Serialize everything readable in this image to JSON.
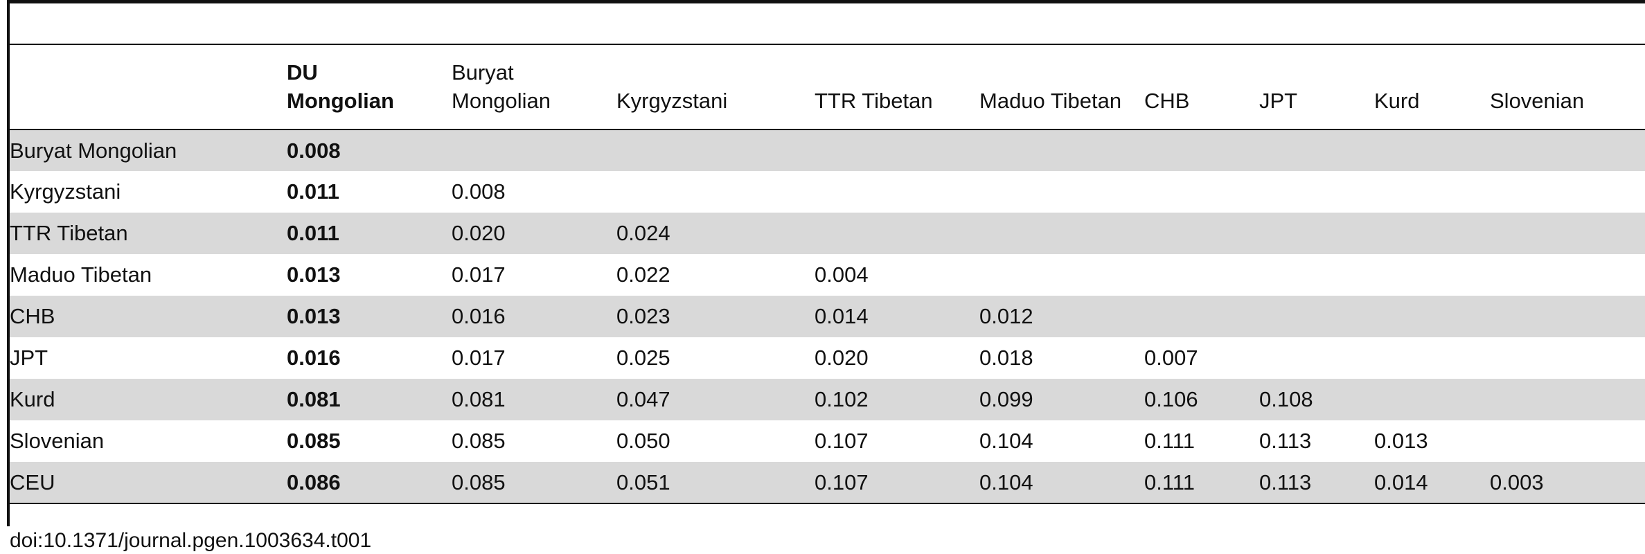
{
  "table": {
    "row_header_label": "",
    "columns": [
      "DU Mongolian",
      "Buryat Mongolian",
      "Kyrgyzstani",
      "TTR Tibetan",
      "Maduo Tibetan",
      "CHB",
      "JPT",
      "Kurd",
      "Slovenian"
    ],
    "rows": [
      {
        "label": "Buryat Mongolian",
        "values": [
          "0.008",
          "",
          "",
          "",
          "",
          "",
          "",
          "",
          ""
        ]
      },
      {
        "label": "Kyrgyzstani",
        "values": [
          "0.011",
          "0.008",
          "",
          "",
          "",
          "",
          "",
          "",
          ""
        ]
      },
      {
        "label": "TTR Tibetan",
        "values": [
          "0.011",
          "0.020",
          "0.024",
          "",
          "",
          "",
          "",
          "",
          ""
        ]
      },
      {
        "label": "Maduo Tibetan",
        "values": [
          "0.013",
          "0.017",
          "0.022",
          "0.004",
          "",
          "",
          "",
          "",
          ""
        ]
      },
      {
        "label": "CHB",
        "values": [
          "0.013",
          "0.016",
          "0.023",
          "0.014",
          "0.012",
          "",
          "",
          "",
          ""
        ]
      },
      {
        "label": "JPT",
        "values": [
          "0.016",
          "0.017",
          "0.025",
          "0.020",
          "0.018",
          "0.007",
          "",
          "",
          ""
        ]
      },
      {
        "label": "Kurd",
        "values": [
          "0.081",
          "0.081",
          "0.047",
          "0.102",
          "0.099",
          "0.106",
          "0.108",
          "",
          ""
        ]
      },
      {
        "label": "Slovenian",
        "values": [
          "0.085",
          "0.085",
          "0.050",
          "0.107",
          "0.104",
          "0.111",
          "0.113",
          "0.013",
          ""
        ]
      },
      {
        "label": "CEU",
        "values": [
          "0.086",
          "0.085",
          "0.051",
          "0.107",
          "0.104",
          "0.111",
          "0.113",
          "0.014",
          "0.003"
        ]
      }
    ]
  },
  "doi": "doi:10.1371/journal.pgen.1003634.t001",
  "colors": {
    "shaded_row": "#d9d9d9",
    "rule": "#111111",
    "text": "#111111"
  }
}
